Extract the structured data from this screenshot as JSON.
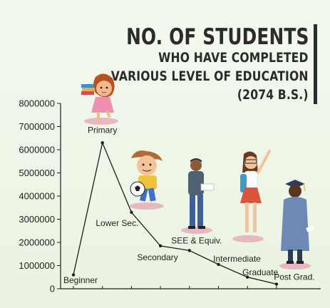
{
  "title": {
    "line1": "NO. OF STUDENTS",
    "line2": "WHO HAVE COMPLETED",
    "line3": "VARIOUS LEVEL OF EDUCATION",
    "line4": "(2074 B.S.)"
  },
  "chart_data": {
    "type": "line",
    "title": "NO. OF STUDENTS WHO HAVE COMPLETED VARIOUS LEVEL OF EDUCATION (2074 B.S.)",
    "categories": [
      "Beginner",
      "Primary",
      "Lower Sec.",
      "Secondary",
      "SEE & Equiv.",
      "Intermediate",
      "Graduate",
      "Post Grad."
    ],
    "values": [
      600000,
      6300000,
      3300000,
      1850000,
      1650000,
      1050000,
      500000,
      200000
    ],
    "ylim": [
      0,
      8000000
    ],
    "yticks": [
      "0",
      "1000000",
      "2000000",
      "3000000",
      "4000000",
      "5000000",
      "6000000",
      "7000000",
      "8000000"
    ],
    "grid": false,
    "colors": {
      "line": "#1c1c1c",
      "axis": "#1c1c1c"
    }
  },
  "illustrations": [
    "girl-with-books",
    "boy-with-soccer-ball",
    "young-man-with-paper",
    "girl-with-bag-waving",
    "graduate-in-gown"
  ]
}
